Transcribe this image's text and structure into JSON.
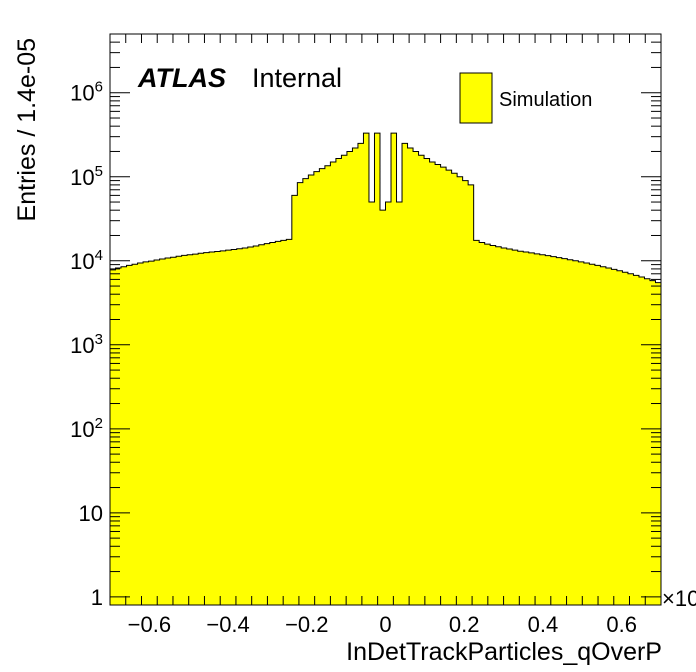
{
  "chart_data": {
    "type": "histogram",
    "x_axis": {
      "label": "InDetTrackParticles_qOverP",
      "range": [
        -0.7,
        0.7
      ],
      "ticks": [
        -0.6,
        -0.4,
        -0.2,
        0,
        0.2,
        0.4,
        0.6
      ],
      "tick_labels": [
        "−0.6",
        "−0.4",
        "−0.2",
        "0",
        "0.2",
        "0.4",
        "0.6"
      ],
      "multiplier_label": "×10"
    },
    "y_axis": {
      "label": "Entries / 1.4e-05",
      "scale": "log",
      "range": [
        0.8,
        5000000
      ],
      "ticks": [
        {
          "value": 1,
          "base": "1",
          "exp": ""
        },
        {
          "value": 10,
          "base": "10",
          "exp": ""
        },
        {
          "value": 100,
          "base": "10",
          "exp": "2"
        },
        {
          "value": 1000,
          "base": "10",
          "exp": "3"
        },
        {
          "value": 10000,
          "base": "10",
          "exp": "4"
        },
        {
          "value": 100000,
          "base": "10",
          "exp": "5"
        },
        {
          "value": 1000000,
          "base": "10",
          "exp": "6"
        }
      ]
    },
    "atlas_label": {
      "bold": "ATLAS",
      "text": "Internal"
    },
    "legend": {
      "entries": [
        {
          "name": "Simulation",
          "color": "#ffff00"
        }
      ],
      "position": "top-right"
    },
    "series": [
      {
        "name": "Simulation",
        "fill_color": "#ffff00",
        "line_color": "#000000",
        "bin_edges": [
          -0.7,
          -0.686,
          -0.672,
          -0.658,
          -0.644,
          -0.63,
          -0.616,
          -0.602,
          -0.588,
          -0.574,
          -0.56,
          -0.546,
          -0.532,
          -0.518,
          -0.504,
          -0.49,
          -0.476,
          -0.462,
          -0.448,
          -0.434,
          -0.42,
          -0.406,
          -0.392,
          -0.378,
          -0.364,
          -0.35,
          -0.336,
          -0.322,
          -0.308,
          -0.294,
          -0.28,
          -0.266,
          -0.252,
          -0.238,
          -0.224,
          -0.21,
          -0.196,
          -0.182,
          -0.168,
          -0.154,
          -0.14,
          -0.126,
          -0.112,
          -0.098,
          -0.084,
          -0.07,
          -0.056,
          -0.042,
          -0.028,
          -0.014,
          0,
          0.014,
          0.028,
          0.042,
          0.056,
          0.07,
          0.084,
          0.098,
          0.112,
          0.126,
          0.14,
          0.154,
          0.168,
          0.182,
          0.196,
          0.21,
          0.224,
          0.238,
          0.252,
          0.266,
          0.28,
          0.294,
          0.308,
          0.322,
          0.336,
          0.35,
          0.364,
          0.378,
          0.392,
          0.406,
          0.42,
          0.434,
          0.448,
          0.462,
          0.476,
          0.49,
          0.504,
          0.518,
          0.532,
          0.546,
          0.56,
          0.574,
          0.588,
          0.602,
          0.616,
          0.63,
          0.644,
          0.658,
          0.672,
          0.686,
          0.7
        ],
        "values": [
          7800,
          8200,
          8500,
          8800,
          9100,
          9400,
          9700,
          9900,
          10200,
          10500,
          10800,
          11000,
          11300,
          11600,
          11800,
          12000,
          12300,
          12500,
          12700,
          12900,
          13100,
          13400,
          13600,
          13900,
          14200,
          14600,
          15000,
          15500,
          16000,
          16500,
          17000,
          17500,
          18000,
          60000,
          85000,
          95000,
          105000,
          115000,
          125000,
          135000,
          150000,
          165000,
          180000,
          200000,
          220000,
          250000,
          330000,
          50000,
          330000,
          40000,
          50000,
          330000,
          50000,
          250000,
          220000,
          200000,
          180000,
          165000,
          150000,
          140000,
          130000,
          120000,
          110000,
          100000,
          90000,
          80000,
          17500,
          16500,
          15800,
          15200,
          14700,
          14200,
          13800,
          13400,
          13000,
          12700,
          12400,
          12100,
          11800,
          11500,
          11200,
          10900,
          10600,
          10300,
          10000,
          9700,
          9400,
          9100,
          8800,
          8500,
          8200,
          7900,
          7600,
          7300,
          7000,
          6700,
          6400,
          6100,
          5800,
          5500
        ]
      }
    ]
  }
}
